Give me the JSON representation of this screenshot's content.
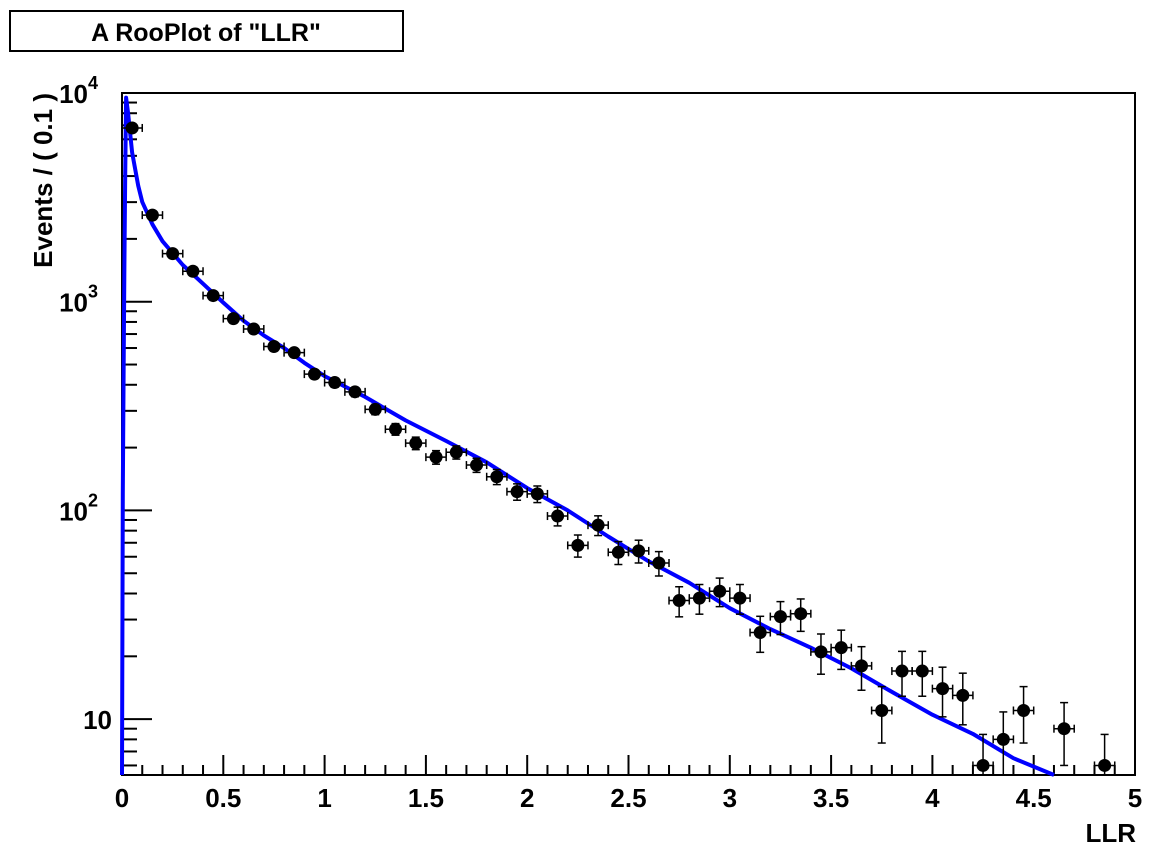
{
  "chart_data": {
    "type": "scatter",
    "title": "A RooPlot of \"LLR\"",
    "xlabel": "LLR",
    "ylabel": "Events / ( 0.1 )",
    "xlim": [
      0,
      5
    ],
    "ylim": [
      5.4,
      10000
    ],
    "yscale": "log",
    "grid": false,
    "legend": "none",
    "x_ticks": [
      "0",
      "0.5",
      "1",
      "1.5",
      "2",
      "2.5",
      "3",
      "3.5",
      "4",
      "4.5",
      "5"
    ],
    "y_ticks": [
      {
        "value": 10,
        "base": "10",
        "exp": ""
      },
      {
        "value": 100,
        "base": "10",
        "exp": "2"
      },
      {
        "value": 1000,
        "base": "10",
        "exp": "3"
      },
      {
        "value": 10000,
        "base": "10",
        "exp": "4"
      }
    ],
    "series": [
      {
        "kind": "data-points",
        "color": "#000000",
        "bin_width": 0.1,
        "x": [
          0.05,
          0.15,
          0.25,
          0.35,
          0.45,
          0.55,
          0.65,
          0.75,
          0.85,
          0.95,
          1.05,
          1.15,
          1.25,
          1.35,
          1.45,
          1.55,
          1.65,
          1.75,
          1.85,
          1.95,
          2.05,
          2.15,
          2.25,
          2.35,
          2.45,
          2.55,
          2.65,
          2.75,
          2.85,
          2.95,
          3.05,
          3.15,
          3.25,
          3.35,
          3.45,
          3.55,
          3.65,
          3.75,
          3.85,
          3.95,
          4.05,
          4.15,
          4.25,
          4.35,
          4.45,
          4.65,
          4.85
        ],
        "y": [
          6800,
          2600,
          1700,
          1400,
          1070,
          830,
          740,
          610,
          570,
          450,
          410,
          370,
          305,
          245,
          210,
          180,
          190,
          165,
          145,
          123,
          120,
          94,
          68,
          85,
          63,
          64,
          56,
          37,
          38,
          41,
          38,
          26,
          31,
          32,
          21,
          22,
          18,
          11,
          17,
          17,
          14,
          13,
          6,
          8,
          11,
          9,
          6
        ]
      },
      {
        "kind": "fit-curve",
        "color": "#0000ff",
        "x": [
          0.0,
          0.004,
          0.008,
          0.012,
          0.016,
          0.02,
          0.03,
          0.05,
          0.08,
          0.1,
          0.15,
          0.2,
          0.3,
          0.4,
          0.5,
          0.6,
          0.7,
          0.8,
          0.9,
          1.0,
          1.2,
          1.4,
          1.6,
          1.8,
          2.0,
          2.2,
          2.4,
          2.6,
          2.8,
          3.0,
          3.2,
          3.4,
          3.6,
          3.8,
          4.0,
          4.2,
          4.4,
          4.6
        ],
        "y": [
          5.4,
          120,
          450,
          1500,
          4000,
          9500,
          8000,
          5200,
          3600,
          3000,
          2350,
          1950,
          1500,
          1220,
          990,
          810,
          690,
          600,
          510,
          440,
          350,
          270,
          215,
          170,
          128,
          100,
          75,
          57,
          45,
          34,
          27,
          22,
          17.5,
          13.5,
          10.5,
          8.5,
          6.5,
          5.4
        ]
      }
    ]
  }
}
